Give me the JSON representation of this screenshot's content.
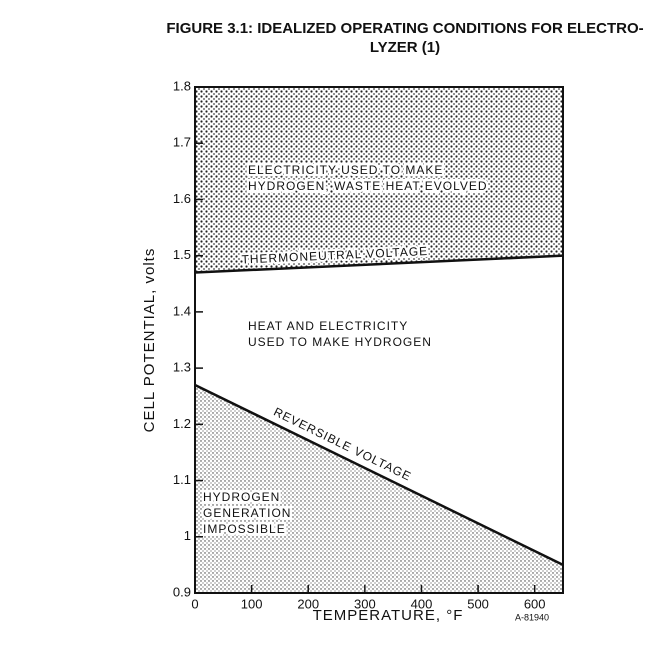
{
  "chart_data": {
    "type": "area",
    "title": [
      "FIGURE 3.1:  IDEALIZED OPERATING CONDITIONS FOR ELECTRO-",
      "LYZER (1)"
    ],
    "xlabel": "TEMPERATURE, °F",
    "ylabel": "CELL POTENTIAL, volts",
    "figure_code": "A-81940",
    "x": [
      0,
      650
    ],
    "series": [
      {
        "name": "THERMONEUTRAL VOLTAGE",
        "color": "#111111",
        "values": [
          1.47,
          1.5
        ]
      },
      {
        "name": "REVERSIBLE VOLTAGE",
        "color": "#111111",
        "values": [
          1.27,
          0.95
        ]
      }
    ],
    "regions": [
      [
        "ELECTRICITY USED TO MAKE",
        "HYDROGEN, WASTE HEAT EVOLVED"
      ],
      [
        "HEAT AND ELECTRICITY",
        "USED TO MAKE HYDROGEN"
      ],
      [
        "HYDROGEN",
        "GENERATION",
        "IMPOSSIBLE"
      ]
    ],
    "xlim": [
      0,
      650
    ],
    "xticks": [
      0,
      100,
      200,
      300,
      400,
      500,
      600
    ],
    "ylim": [
      0.9,
      1.8
    ],
    "yticks": [
      0.9,
      1.0,
      1.1,
      1.2,
      1.3,
      1.4,
      1.5,
      1.6,
      1.7,
      1.8
    ]
  }
}
